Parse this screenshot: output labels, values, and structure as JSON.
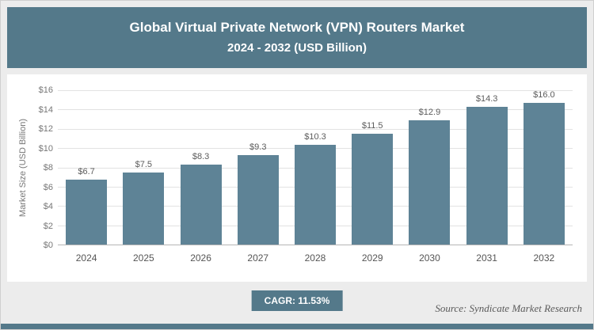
{
  "colors": {
    "accent": "#54798a",
    "bar": "#5e8396",
    "gridline": "#e2e2e2"
  },
  "header": {
    "title_line1": "Global Virtual Private Network (VPN) Routers Market",
    "title_line2": "2024 - 2032 (USD Billion)"
  },
  "chart_data": {
    "type": "bar",
    "title": "Global Virtual Private Network (VPN) Routers Market 2024 - 2032 (USD Billion)",
    "categories": [
      "2024",
      "2025",
      "2026",
      "2027",
      "2028",
      "2029",
      "2030",
      "2031",
      "2032"
    ],
    "values": [
      6.7,
      7.5,
      8.3,
      9.3,
      10.3,
      11.5,
      12.9,
      14.3,
      16.0
    ],
    "value_labels": [
      "$6.7",
      "$7.5",
      "$8.3",
      "$9.3",
      "$10.3",
      "$11.5",
      "$12.9",
      "$14.3",
      "$16.0"
    ],
    "xlabel": "",
    "ylabel": "Market Size (USD Billion)",
    "ylim": [
      0,
      16
    ],
    "grid": true,
    "legend": "none",
    "yticks": [
      {
        "value": 0,
        "label": "$0"
      },
      {
        "value": 2,
        "label": "$2"
      },
      {
        "value": 4,
        "label": "$4"
      },
      {
        "value": 6,
        "label": "$6"
      },
      {
        "value": 8,
        "label": "$8"
      },
      {
        "value": 10,
        "label": "$10"
      },
      {
        "value": 12,
        "label": "$12"
      },
      {
        "value": 14,
        "label": "$14"
      },
      {
        "value": 16,
        "label": "$16"
      }
    ]
  },
  "footer": {
    "cagr_label": "CAGR: 11.53%",
    "source": "Source: Syndicate Market Research"
  }
}
